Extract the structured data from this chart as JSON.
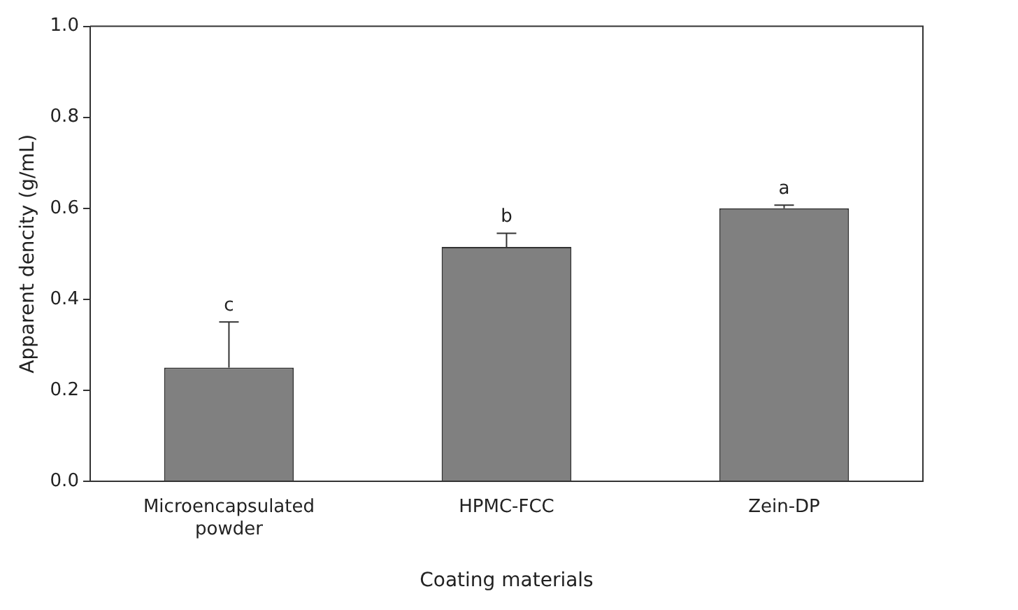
{
  "chart_data": {
    "type": "bar",
    "xlabel": "Coating materials",
    "ylabel": "Apparent dencity (g/mL)",
    "categories": [
      "Microencapsulated powder",
      "HPMC-FCC",
      "Zein-DP"
    ],
    "values": [
      0.25,
      0.515,
      0.6
    ],
    "errors": [
      [
        0.25,
        0.35
      ],
      [
        0.515,
        0.545
      ],
      [
        0.6,
        0.607
      ]
    ],
    "color": "#808080",
    "ylim": [
      0,
      1
    ],
    "yticks": [
      {
        "value": 0,
        "label": "0.0"
      },
      0.2,
      0.4,
      0.6,
      0.8,
      {
        "value": 1,
        "label": "1.0"
      }
    ],
    "grid": false,
    "legend": false,
    "annotations": [
      {
        "text": "c",
        "x": "Microencapsulated powder",
        "y": 0.35
      },
      {
        "text": "b",
        "x": "HPMC-FCC",
        "y": 0.545
      },
      {
        "text": "a",
        "x": "Zein-DP",
        "y": 0.607
      }
    ]
  }
}
